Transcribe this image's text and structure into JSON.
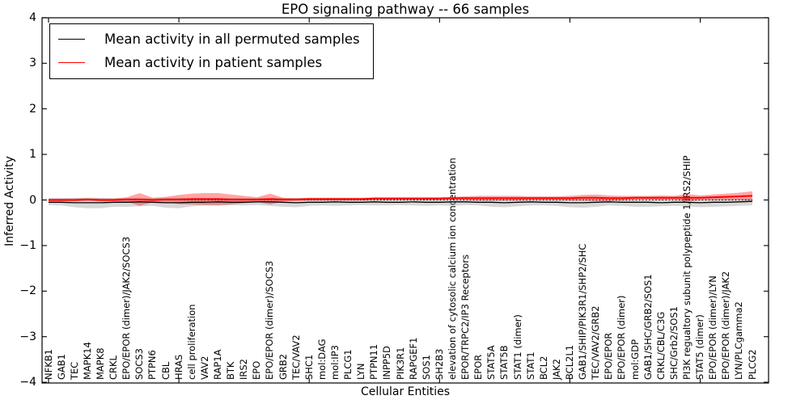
{
  "chart_data": {
    "type": "line",
    "title": "EPO signaling pathway -- 66 samples",
    "xlabel": "Cellular Entities",
    "ylabel": "Inferred Activity",
    "ylim": [
      -4,
      4
    ],
    "grid": false,
    "legend_position": "upper left",
    "background": "#ffffff",
    "yticks": [
      {
        "value": 4,
        "label": "4"
      },
      {
        "value": 3,
        "label": "3"
      },
      {
        "value": 2,
        "label": "2"
      },
      {
        "value": 1,
        "label": "1"
      },
      {
        "value": 0,
        "label": "0"
      },
      {
        "value": -1,
        "label": "−1"
      },
      {
        "value": -2,
        "label": "−2"
      },
      {
        "value": -3,
        "label": "−3"
      },
      {
        "value": -4,
        "label": "−4"
      }
    ],
    "xtick_indices": [
      0,
      10,
      20,
      30,
      40,
      50
    ],
    "zero_line": {
      "y": 0,
      "style": "dotted",
      "color": "#000000"
    },
    "categories": [
      "NFKB1",
      "GAB1",
      "TEC",
      "MAPK14",
      "MAPK8",
      "CRKL",
      "EPO/EPOR (dimer)/JAK2/SOCS3",
      "SOCS3",
      "PTPN6",
      "CBL",
      "HRAS",
      "cell proliferation",
      "VAV2",
      "RAP1A",
      "BTK",
      "IRS2",
      "EPO",
      "EPO/EPOR (dimer)/SOCS3",
      "GRB2",
      "TEC/VAV2",
      "SHC1",
      "mol:DAG",
      "mol:IP3",
      "PLCG1",
      "LYN",
      "PTPN11",
      "INPP5D",
      "PIK3R1",
      "RAPGEF1",
      "SOS1",
      "SH2B3",
      "elevation of cytosolic calcium ion concentration",
      "EPOR/TRPC2/IP3 Receptors",
      "EPOR",
      "STAT5A",
      "STAT5B",
      "STAT1 (dimer)",
      "STAT1",
      "BCL2",
      "JAK2",
      "BCL2L1",
      "GAB1/SHIP/PIK3R1/SHP2/SHC",
      "TEC/VAV2/GRB2",
      "EPO/EPOR",
      "EPO/EPOR (dimer)",
      "mol:GDP",
      "GAB1/SHC/GRB2/SOS1",
      "CRKL/CBL/C3G",
      "SHC/Grb2/SOS1",
      "PI3K regualtory subunit polypeptide 1/IRS2/SHIP",
      "STAT5 (dimer)",
      "EPO/EPOR (dimer)/LYN",
      "EPO/EPOR (dimer)/JAK2",
      "LYN/PLCgamma2",
      "PLCG2"
    ],
    "series": [
      {
        "key": "permuted",
        "name": "Mean activity in all permuted samples",
        "color": "#000000",
        "width": 1.3,
        "band_color": "#999999",
        "band_opacity": 0.38,
        "values": [
          -0.05,
          -0.05,
          -0.06,
          -0.06,
          -0.06,
          -0.05,
          -0.05,
          -0.04,
          -0.05,
          -0.06,
          -0.06,
          -0.05,
          -0.05,
          -0.04,
          -0.05,
          -0.05,
          -0.04,
          -0.04,
          -0.05,
          -0.06,
          -0.05,
          -0.05,
          -0.04,
          -0.05,
          -0.05,
          -0.04,
          -0.05,
          -0.05,
          -0.04,
          -0.05,
          -0.05,
          -0.04,
          -0.04,
          -0.05,
          -0.05,
          -0.06,
          -0.05,
          -0.04,
          -0.05,
          -0.05,
          -0.06,
          -0.06,
          -0.05,
          -0.04,
          -0.05,
          -0.05,
          -0.05,
          -0.06,
          -0.05,
          -0.05,
          -0.06,
          -0.05,
          -0.05,
          -0.04,
          -0.03
        ],
        "band_upper": [
          0.04,
          0.04,
          0.05,
          0.05,
          0.05,
          0.04,
          0.04,
          0.05,
          0.04,
          0.05,
          0.05,
          0.04,
          0.04,
          0.04,
          0.04,
          0.04,
          0.04,
          0.05,
          0.04,
          0.04,
          0.04,
          0.04,
          0.04,
          0.04,
          0.04,
          0.04,
          0.04,
          0.04,
          0.04,
          0.04,
          0.04,
          0.04,
          0.04,
          0.04,
          0.05,
          0.05,
          0.04,
          0.04,
          0.04,
          0.04,
          0.05,
          0.05,
          0.04,
          0.04,
          0.04,
          0.05,
          0.05,
          0.05,
          0.04,
          0.04,
          0.05,
          0.05,
          0.04,
          0.04,
          0.04
        ],
        "band_lower": [
          -0.11,
          -0.12,
          -0.16,
          -0.18,
          -0.18,
          -0.15,
          -0.15,
          -0.14,
          -0.13,
          -0.17,
          -0.18,
          -0.14,
          -0.12,
          -0.13,
          -0.11,
          -0.12,
          -0.11,
          -0.13,
          -0.15,
          -0.16,
          -0.13,
          -0.12,
          -0.13,
          -0.12,
          -0.11,
          -0.12,
          -0.12,
          -0.11,
          -0.12,
          -0.13,
          -0.12,
          -0.13,
          -0.11,
          -0.12,
          -0.15,
          -0.16,
          -0.14,
          -0.12,
          -0.12,
          -0.13,
          -0.16,
          -0.17,
          -0.15,
          -0.12,
          -0.13,
          -0.15,
          -0.15,
          -0.14,
          -0.13,
          -0.14,
          -0.16,
          -0.15,
          -0.14,
          -0.13,
          -0.12
        ]
      },
      {
        "key": "patient",
        "name": "Mean activity in patient samples",
        "color": "#ff0000",
        "width": 2.0,
        "band_color": "#ff0000",
        "band_opacity": 0.35,
        "values": [
          0.0,
          0.0,
          0.0,
          0.01,
          0.0,
          0.0,
          0.01,
          0.01,
          0.0,
          0.01,
          0.01,
          0.02,
          0.02,
          0.02,
          0.01,
          0.01,
          0.01,
          0.02,
          0.01,
          0.01,
          0.02,
          0.02,
          0.02,
          0.02,
          0.02,
          0.03,
          0.03,
          0.03,
          0.03,
          0.03,
          0.03,
          0.04,
          0.04,
          0.04,
          0.04,
          0.04,
          0.04,
          0.04,
          0.04,
          0.04,
          0.04,
          0.05,
          0.05,
          0.04,
          0.04,
          0.05,
          0.05,
          0.05,
          0.05,
          0.05,
          0.05,
          0.06,
          0.07,
          0.08,
          0.09
        ],
        "band_upper": [
          0.03,
          0.03,
          0.03,
          0.04,
          0.03,
          0.03,
          0.06,
          0.15,
          0.05,
          0.07,
          0.11,
          0.14,
          0.15,
          0.15,
          0.12,
          0.09,
          0.06,
          0.14,
          0.05,
          0.04,
          0.05,
          0.05,
          0.05,
          0.05,
          0.05,
          0.06,
          0.06,
          0.06,
          0.06,
          0.06,
          0.06,
          0.07,
          0.08,
          0.09,
          0.09,
          0.09,
          0.09,
          0.08,
          0.08,
          0.08,
          0.09,
          0.11,
          0.12,
          0.1,
          0.09,
          0.09,
          0.09,
          0.1,
          0.09,
          0.13,
          0.1,
          0.12,
          0.14,
          0.16,
          0.19
        ],
        "band_lower": [
          -0.03,
          -0.03,
          -0.03,
          -0.02,
          -0.03,
          -0.03,
          -0.04,
          -0.13,
          -0.05,
          -0.05,
          -0.09,
          -0.1,
          -0.11,
          -0.11,
          -0.1,
          -0.07,
          -0.04,
          -0.1,
          -0.03,
          -0.02,
          -0.01,
          -0.01,
          -0.01,
          -0.01,
          -0.01,
          0.0,
          0.0,
          0.0,
          0.0,
          0.0,
          0.0,
          0.01,
          0.0,
          -0.01,
          -0.01,
          -0.01,
          -0.01,
          0.0,
          0.0,
          0.0,
          -0.01,
          -0.01,
          -0.02,
          -0.02,
          -0.01,
          0.01,
          0.01,
          0.0,
          0.01,
          -0.03,
          0.0,
          0.0,
          0.0,
          0.0,
          -0.01
        ]
      }
    ]
  }
}
